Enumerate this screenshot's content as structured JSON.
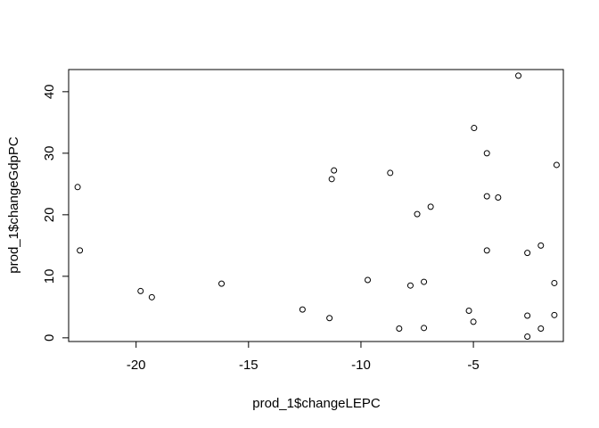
{
  "chart_data": {
    "type": "scatter",
    "xlabel": "prod_1$changeLEPC",
    "ylabel": "prod_1$changeGdpPC",
    "xlim": [
      -23,
      -1
    ],
    "ylim": [
      -0.6,
      43.6
    ],
    "xticks": [
      {
        "value": -20,
        "label": "-20"
      },
      {
        "value": -15,
        "label": "-15"
      },
      {
        "value": -10,
        "label": "-10"
      },
      {
        "value": -5,
        "label": "-5"
      }
    ],
    "yticks": [
      {
        "value": 0,
        "label": "0"
      },
      {
        "value": 10,
        "label": "10"
      },
      {
        "value": 20,
        "label": "20"
      },
      {
        "value": 30,
        "label": "30"
      },
      {
        "value": 40,
        "label": "40"
      }
    ],
    "grid": false,
    "points": [
      {
        "x": -22.6,
        "y": 24.5
      },
      {
        "x": -22.5,
        "y": 14.2
      },
      {
        "x": -19.8,
        "y": 7.6
      },
      {
        "x": -19.3,
        "y": 6.6
      },
      {
        "x": -16.2,
        "y": 8.8
      },
      {
        "x": -12.6,
        "y": 4.6
      },
      {
        "x": -11.4,
        "y": 3.2
      },
      {
        "x": -11.3,
        "y": 25.8
      },
      {
        "x": -11.2,
        "y": 27.2
      },
      {
        "x": -9.7,
        "y": 9.4
      },
      {
        "x": -8.7,
        "y": 26.8
      },
      {
        "x": -8.3,
        "y": 1.5
      },
      {
        "x": -7.8,
        "y": 8.5
      },
      {
        "x": -7.5,
        "y": 20.1
      },
      {
        "x": -7.2,
        "y": 1.6
      },
      {
        "x": -7.2,
        "y": 9.1
      },
      {
        "x": -6.9,
        "y": 21.3
      },
      {
        "x": -5.2,
        "y": 4.4
      },
      {
        "x": -5.0,
        "y": 2.6
      },
      {
        "x": -4.97,
        "y": 34.1
      },
      {
        "x": -4.4,
        "y": 30.0
      },
      {
        "x": -4.4,
        "y": 23.0
      },
      {
        "x": -4.4,
        "y": 14.2
      },
      {
        "x": -3.9,
        "y": 22.8
      },
      {
        "x": -3.0,
        "y": 42.6
      },
      {
        "x": -2.6,
        "y": 3.6
      },
      {
        "x": -2.6,
        "y": 0.2
      },
      {
        "x": -2.6,
        "y": 13.8
      },
      {
        "x": -2.0,
        "y": 15.0
      },
      {
        "x": -2.0,
        "y": 1.5
      },
      {
        "x": -1.4,
        "y": 8.9
      },
      {
        "x": -1.4,
        "y": 3.7
      },
      {
        "x": -1.3,
        "y": 28.1
      }
    ]
  }
}
